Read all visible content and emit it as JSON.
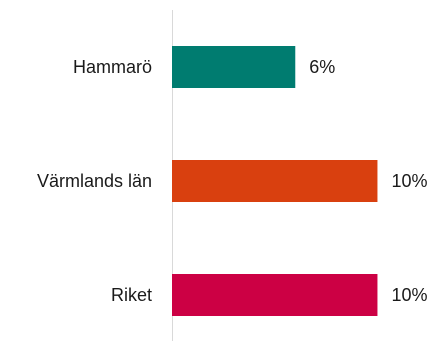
{
  "chart_data": {
    "type": "bar",
    "orientation": "horizontal",
    "categories": [
      "Hammarö",
      "Värmlands län",
      "Riket"
    ],
    "values": [
      6,
      10,
      10
    ],
    "value_labels": [
      "6%",
      "10%",
      "10%"
    ],
    "unit": "%",
    "colors": [
      "#007c70",
      "#d9400f",
      "#cc0044"
    ],
    "xlim": [
      0,
      11
    ],
    "grid": false,
    "legend": "none"
  }
}
